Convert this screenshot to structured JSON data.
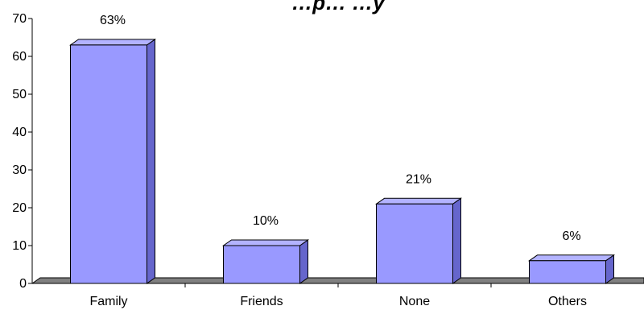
{
  "chart_data": {
    "type": "bar",
    "title": "…p… …y",
    "categories": [
      "Family",
      "Friends",
      "None",
      "Others"
    ],
    "values": [
      63,
      10,
      21,
      6
    ],
    "data_labels": [
      "63%",
      "10%",
      "21%",
      "6%"
    ],
    "yticks": [
      "0",
      "10",
      "20",
      "30",
      "40",
      "50",
      "60",
      "70"
    ],
    "ylim": [
      0,
      70
    ],
    "xlabel": "",
    "ylabel": "",
    "grid": false,
    "legend": "none",
    "bar_style": "3d",
    "colors": {
      "bar_front": "#9999FF",
      "bar_side": "#6666CC",
      "bar_top": "#B3B3FF",
      "floor": "#808080",
      "outline": "#000000"
    }
  }
}
